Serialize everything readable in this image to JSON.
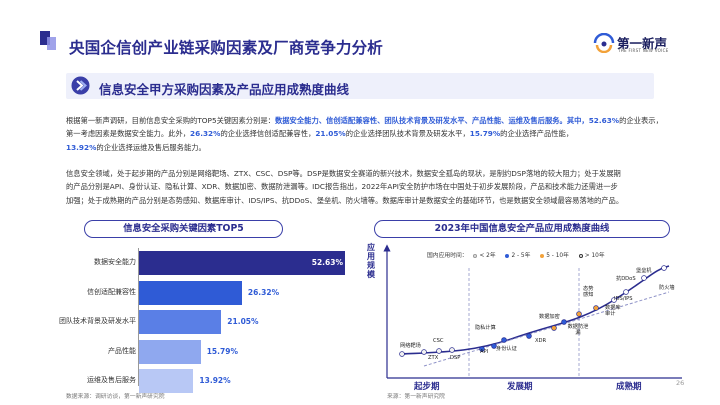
{
  "header": {
    "title": "央国企信创产业链采购因素及厂商竞争力分析",
    "logo_text": "第一新声",
    "logo_sub": "THE FIRST NEW VOICE"
  },
  "section": {
    "title": "信息安全甲方采购因素及产品应用成熟度曲线"
  },
  "paragraph1": {
    "t1": "根据第一新声调研，目前信息安全采购的TOP5关键因素分别是：",
    "h1": "数据安全能力、信创适配兼容性、团队技术背景及研发水平、产品性能、运维及售后服务。其中，52.63%",
    "t2": "的企业表示，第一考虑因素是数据安全能力。此外，",
    "h2": "26.32%",
    "t3": "的企业选择信创适配兼容性，",
    "h3": "21.05%",
    "t4": "的企业选择团队技术背景及研发水平，",
    "h4": "15.79%",
    "t5": "的企业选择产品性能，",
    "h5": "13.92%",
    "t6": "的企业选择运维及售后服务能力。"
  },
  "paragraph2": {
    "line1": "信息安全领域，处于起步期的产品分别是网络靶场、ZTX、CSC、DSP等。DSP是数据安全赛道的新兴技术，数据安全孤岛的现状，是制约DSP落地的较大阻力；处于发展期",
    "line2": "的产品分别是API、身份认证、隐私计算、XDR、数据加密、数据防泄漏等。IDC报告指出，2022年API安全防护市场在中国处于初步发展阶段，产品和技术能力还需进一步",
    "line3": "加强；处于成熟期的产品分别是态势感知、数据库审计、IDS/IPS、抗DDoS、堡垒机、防火墙等。数据库审计是数据安全的基础环节，也是数据安全领域最容易落地的产品。"
  },
  "left_panel": {
    "title": "信息安全采购关键因素TOP5",
    "source": "数据来源：调研访谈，第一新声研究院"
  },
  "right_panel": {
    "title": "2023年中国信息安全产品应用成熟度曲线",
    "ylabel": "应用规模",
    "legend_title": "国内应用时间：",
    "legend": [
      {
        "label": "< 2年",
        "color": "#f2f2f2"
      },
      {
        "label": "2 - 5年",
        "color": "#2f5bd6"
      },
      {
        "label": "5 - 10年",
        "color": "#f2a23a"
      },
      {
        "label": "> 10年",
        "color": "#ffffff"
      }
    ],
    "stages": [
      "起步期",
      "发展期",
      "成熟期"
    ],
    "source": "来源：第一新声研究院"
  },
  "technologies": [
    {
      "name": "网络靶场",
      "color": "#f2f2f2"
    },
    {
      "name": "ZTX",
      "color": "#f2f2f2"
    },
    {
      "name": "CSC",
      "color": "#f2f2f2"
    },
    {
      "name": "DSP",
      "color": "#f2f2f2"
    },
    {
      "name": "API",
      "color": "#2f5bd6"
    },
    {
      "name": "身份认证",
      "color": "#2f5bd6"
    },
    {
      "name": "隐私计算",
      "color": "#2f5bd6"
    },
    {
      "name": "XDR",
      "color": "#2f5bd6"
    },
    {
      "name": "数据加密",
      "color": "#f2a23a"
    },
    {
      "name": "数据防泄漏",
      "color": "#2f5bd6"
    },
    {
      "name": "态势感知",
      "color": "#f2a23a"
    },
    {
      "name": "数据库审计",
      "color": "#f2a23a"
    },
    {
      "name": "IDS/IPS",
      "color": "#ffffff"
    },
    {
      "name": "抗DDoS",
      "color": "#ffffff"
    },
    {
      "name": "堡垒机",
      "color": "#ffffff"
    },
    {
      "name": "防火墙",
      "color": "#ffffff"
    }
  ],
  "page_number": "26",
  "chart_data": {
    "type": "bar",
    "orientation": "horizontal",
    "title": "信息安全采购关键因素TOP5",
    "categories": [
      "数据安全能力",
      "信创适配兼容性",
      "团队技术背景及研发水平",
      "产品性能",
      "运维及售后服务"
    ],
    "values": [
      52.63,
      26.32,
      21.05,
      15.79,
      13.92
    ],
    "value_labels": [
      "52.63%",
      "26.32%",
      "21.05%",
      "15.79%",
      "13.92%"
    ],
    "unit": "%",
    "colors": [
      "#2b2d8f",
      "#2f5bd6",
      "#5a7fe6",
      "#8fa8ef",
      "#b8c8f5"
    ],
    "xlim": [
      0,
      55
    ],
    "grid": false
  }
}
